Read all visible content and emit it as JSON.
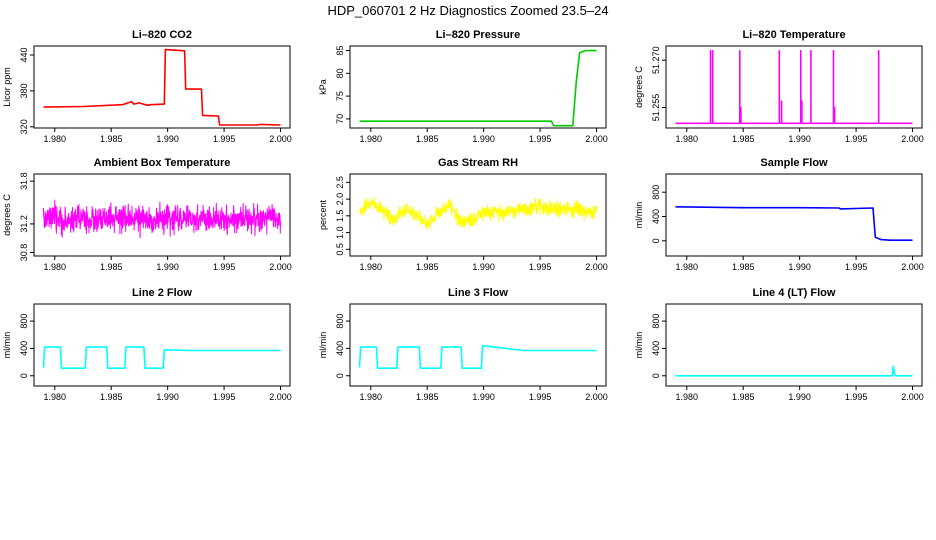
{
  "figure": {
    "title": "HDP_060701  2 Hz Diagnostics Zoomed 23.5–24"
  },
  "chart_data": [
    {
      "type": "line",
      "title": "Li–820 CO2",
      "xlabel": "",
      "ylabel": "Licor ppm",
      "color": "#ff0000",
      "xlim": [
        1.979,
        2.0
      ],
      "ylim": [
        318,
        455
      ],
      "xticks": [
        1.98,
        1.985,
        1.99,
        1.995,
        2.0
      ],
      "xtick_labels": [
        "1.980",
        "1.985",
        "1.990",
        "1.995",
        "2.000"
      ],
      "yticks": [
        320,
        380,
        440
      ],
      "ytick_labels": [
        "320",
        "380",
        "440"
      ],
      "series": [
        {
          "x": [
            1.979,
            1.9825,
            1.986,
            1.9868,
            1.987,
            1.9875,
            1.9882,
            1.9885,
            1.9897,
            1.9898,
            1.9915,
            1.9916,
            1.993,
            1.9931,
            1.9945,
            1.9946,
            1.998,
            1.9982,
            2.0
          ],
          "y": [
            353,
            354,
            357,
            362,
            358,
            360,
            356,
            357,
            358,
            449,
            447,
            383,
            383,
            339,
            338,
            323,
            323,
            324,
            323
          ]
        }
      ]
    },
    {
      "type": "line",
      "title": "Li–820 Pressure",
      "xlabel": "",
      "ylabel": "kPa",
      "color": "#00cc00",
      "xlim": [
        1.979,
        2.0
      ],
      "ylim": [
        68,
        86
      ],
      "xticks": [
        1.98,
        1.985,
        1.99,
        1.995,
        2.0
      ],
      "xtick_labels": [
        "1.980",
        "1.985",
        "1.990",
        "1.995",
        "2.000"
      ],
      "yticks": [
        70,
        75,
        80,
        85
      ],
      "ytick_labels": [
        "70",
        "75",
        "80",
        "85"
      ],
      "series": [
        {
          "x": [
            1.979,
            1.996,
            1.9962,
            1.9979,
            1.9982,
            1.9985,
            1.999,
            2.0
          ],
          "y": [
            69.5,
            69.5,
            68.5,
            68.5,
            78,
            84.5,
            85,
            85
          ]
        }
      ]
    },
    {
      "type": "line",
      "title": "Li–820 Temperature",
      "xlabel": "",
      "ylabel": "degrees C",
      "color": "#ff00ff",
      "xlim": [
        1.979,
        2.0
      ],
      "ylim": [
        51.2485,
        51.2745
      ],
      "xticks": [
        1.98,
        1.985,
        1.99,
        1.995,
        2.0
      ],
      "xtick_labels": [
        "1.980",
        "1.985",
        "1.990",
        "1.995",
        "2.000"
      ],
      "yticks": [
        51.255,
        51.27
      ],
      "ytick_labels": [
        "51.255",
        "51.270"
      ],
      "series": [
        {
          "x": [
            1.979,
            1.9821,
            1.9821,
            1.9821,
            1.9823,
            1.9823,
            1.9823,
            1.9847,
            1.9847,
            1.9847,
            1.9848,
            1.9848,
            1.9848,
            1.9882,
            1.9882,
            1.9882,
            1.9884,
            1.9884,
            1.9884,
            1.9901,
            1.9901,
            1.9901,
            1.9902,
            1.9902,
            1.9902,
            1.991,
            1.991,
            1.991,
            1.993,
            1.993,
            1.993,
            1.9931,
            1.9931,
            1.9931,
            1.997,
            1.997,
            1.997,
            2.0
          ],
          "y": [
            51.25,
            51.25,
            51.273,
            51.25,
            51.25,
            51.273,
            51.25,
            51.25,
            51.273,
            51.25,
            51.25,
            51.255,
            51.25,
            51.25,
            51.273,
            51.25,
            51.25,
            51.257,
            51.25,
            51.25,
            51.273,
            51.25,
            51.25,
            51.257,
            51.25,
            51.25,
            51.273,
            51.25,
            51.25,
            51.273,
            51.25,
            51.25,
            51.255,
            51.25,
            51.25,
            51.273,
            51.25,
            51.25
          ]
        }
      ]
    },
    {
      "type": "line",
      "title": "Ambient Box Temperature",
      "xlabel": "",
      "ylabel": "degrees C",
      "color": "#ff00ff",
      "xlim": [
        1.979,
        2.0
      ],
      "ylim": [
        30.75,
        31.9
      ],
      "xticks": [
        1.98,
        1.985,
        1.99,
        1.995,
        2.0
      ],
      "xtick_labels": [
        "1.980",
        "1.985",
        "1.990",
        "1.995",
        "2.000"
      ],
      "yticks": [
        30.8,
        31.2,
        31.8
      ],
      "ytick_labels": [
        "30.8",
        "31.2",
        "31.8"
      ],
      "series": [
        {
          "x": [
            1.979,
            1.98,
            1.981,
            1.982,
            1.983,
            1.984,
            1.985,
            1.986,
            1.987,
            1.988,
            1.989,
            1.99,
            1.991,
            1.992,
            1.993,
            1.994,
            1.995,
            1.996,
            1.997,
            1.998,
            1.999,
            2.0
          ],
          "y": [
            31.25,
            31.28,
            31.22,
            31.3,
            31.26,
            31.24,
            31.28,
            31.25,
            31.3,
            31.23,
            31.27,
            31.26,
            31.29,
            31.24,
            31.28,
            31.25,
            31.27,
            31.26,
            31.3,
            31.25,
            31.28,
            31.27
          ],
          "noise": 0.28
        }
      ]
    },
    {
      "type": "line",
      "title": "Gas Stream RH",
      "xlabel": "",
      "ylabel": "percent",
      "color": "#ffff00",
      "xlim": [
        1.979,
        2.0
      ],
      "ylim": [
        0.3,
        2.75
      ],
      "xticks": [
        1.98,
        1.985,
        1.99,
        1.995,
        2.0
      ],
      "xtick_labels": [
        "1.980",
        "1.985",
        "1.990",
        "1.995",
        "2.000"
      ],
      "yticks": [
        0.5,
        1.0,
        1.5,
        2.0,
        2.5
      ],
      "ytick_labels": [
        "0.5",
        "1.0",
        "1.5",
        "2.0",
        "2.5"
      ],
      "series": [
        {
          "x": [
            1.979,
            1.98,
            1.981,
            1.982,
            1.983,
            1.984,
            1.985,
            1.986,
            1.987,
            1.988,
            1.989,
            1.99,
            1.991,
            1.992,
            1.993,
            1.994,
            1.995,
            1.996,
            1.997,
            1.998,
            1.999,
            2.0
          ],
          "y": [
            1.6,
            1.9,
            1.7,
            1.4,
            1.7,
            1.6,
            1.2,
            1.6,
            1.8,
            1.3,
            1.4,
            1.6,
            1.6,
            1.6,
            1.7,
            1.7,
            1.8,
            1.7,
            1.7,
            1.7,
            1.6,
            1.6
          ],
          "noise": 0.32
        }
      ]
    },
    {
      "type": "line",
      "title": "Sample Flow",
      "xlabel": "",
      "ylabel": "ml/min",
      "color": "#0000ff",
      "xlim": [
        1.979,
        2.0
      ],
      "ylim": [
        -250,
        1100
      ],
      "xticks": [
        1.98,
        1.985,
        1.99,
        1.995,
        2.0
      ],
      "xtick_labels": [
        "1.980",
        "1.985",
        "1.990",
        "1.995",
        "2.000"
      ],
      "yticks": [
        0,
        400,
        800
      ],
      "ytick_labels": [
        "0",
        "400",
        "800"
      ],
      "series": [
        {
          "x": [
            1.979,
            1.985,
            1.99,
            1.9935,
            1.9936,
            1.9965,
            1.9967,
            1.9972,
            1.998,
            2.0
          ],
          "y": [
            560,
            545,
            545,
            540,
            525,
            540,
            60,
            20,
            10,
            10
          ]
        }
      ]
    },
    {
      "type": "line",
      "title": "Line 2 Flow",
      "xlabel": "",
      "ylabel": "ml/min",
      "color": "#00ffff",
      "xlim": [
        1.979,
        2.0
      ],
      "ylim": [
        -150,
        1050
      ],
      "xticks": [
        1.98,
        1.985,
        1.99,
        1.995,
        2.0
      ],
      "xtick_labels": [
        "1.980",
        "1.985",
        "1.990",
        "1.995",
        "2.000"
      ],
      "yticks": [
        0,
        400,
        800
      ],
      "ytick_labels": [
        "0",
        "400",
        "800"
      ],
      "series": [
        {
          "x": [
            1.979,
            1.9791,
            1.9805,
            1.9806,
            1.9827,
            1.9828,
            1.9846,
            1.9847,
            1.9862,
            1.9863,
            1.9879,
            1.988,
            1.9896,
            1.9897,
            1.992,
            2.0
          ],
          "y": [
            120,
            420,
            420,
            110,
            110,
            420,
            420,
            110,
            110,
            420,
            420,
            110,
            110,
            380,
            370,
            370
          ]
        }
      ]
    },
    {
      "type": "line",
      "title": "Line 3 Flow",
      "xlabel": "",
      "ylabel": "ml/min",
      "color": "#00ffff",
      "xlim": [
        1.979,
        2.0
      ],
      "ylim": [
        -150,
        1050
      ],
      "xticks": [
        1.98,
        1.985,
        1.99,
        1.995,
        2.0
      ],
      "xtick_labels": [
        "1.980",
        "1.985",
        "1.990",
        "1.995",
        "2.000"
      ],
      "yticks": [
        0,
        400,
        800
      ],
      "ytick_labels": [
        "0",
        "400",
        "800"
      ],
      "series": [
        {
          "x": [
            1.979,
            1.9791,
            1.9805,
            1.9806,
            1.9823,
            1.9824,
            1.9843,
            1.9844,
            1.9862,
            1.9863,
            1.988,
            1.9881,
            1.9898,
            1.9899,
            1.9935,
            2.0
          ],
          "y": [
            120,
            420,
            420,
            110,
            110,
            420,
            420,
            110,
            110,
            420,
            420,
            110,
            110,
            440,
            370,
            370
          ]
        }
      ]
    },
    {
      "type": "line",
      "title": "Line 4 (LT) Flow",
      "xlabel": "",
      "ylabel": "ml/min",
      "color": "#00ffff",
      "xlim": [
        1.979,
        2.0
      ],
      "ylim": [
        -150,
        1050
      ],
      "xticks": [
        1.98,
        1.985,
        1.99,
        1.995,
        2.0
      ],
      "xtick_labels": [
        "1.980",
        "1.985",
        "1.990",
        "1.995",
        "2.000"
      ],
      "yticks": [
        0,
        400,
        800
      ],
      "ytick_labels": [
        "0",
        "400",
        "800"
      ],
      "series": [
        {
          "x": [
            1.979,
            1.9982,
            1.9983,
            1.9984,
            1.9986,
            2.0
          ],
          "y": [
            0,
            0,
            140,
            20,
            0,
            0
          ]
        }
      ]
    }
  ]
}
